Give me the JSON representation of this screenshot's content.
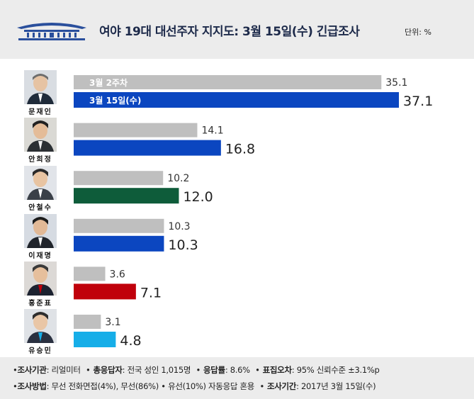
{
  "header": {
    "title": "여야 19대 대선주자 지지도: 3월 15일(수) 긴급조사",
    "unit": "단위: %"
  },
  "chart_data": {
    "type": "bar",
    "categories": [
      "문재인",
      "안희정",
      "안철수",
      "이재명",
      "홍준표",
      "유승민"
    ],
    "series": [
      {
        "name": "3월 2주차",
        "values": [
          35.1,
          14.1,
          10.2,
          10.3,
          3.6,
          3.1
        ]
      },
      {
        "name": "3월 15일(수)",
        "values": [
          37.1,
          16.8,
          12.0,
          10.3,
          7.1,
          4.8
        ]
      }
    ],
    "series_labels_shown_on_first_row": true,
    "value_labels": {
      "previous": [
        "35.1",
        "14.1",
        "10.2",
        "10.3",
        "3.6",
        "3.1"
      ],
      "current": [
        "37.1",
        "16.8",
        "12.0",
        "10.3",
        "7.1",
        "4.8"
      ]
    },
    "colors": {
      "previous": "#bfbfbf",
      "current": [
        "#0b46c0",
        "#0b46c0",
        "#0e5c3a",
        "#0b46c0",
        "#c0000b",
        "#16aee8"
      ]
    },
    "xlim": [
      0,
      37.1
    ]
  },
  "footer": {
    "line1": [
      {
        "key": "조사기관",
        "value": "리얼미터"
      },
      {
        "key": "총응답자",
        "value": "전국 성인 1,015명"
      },
      {
        "key": "응답률",
        "value": "8.6%"
      },
      {
        "key": "표집오차",
        "value": "95% 신뢰수준 ±3.1%p"
      }
    ],
    "line2": [
      {
        "key": "조사방법",
        "value": "무선 전화면접(4%), 무선(86%) • 유선(10%) 자동응답 혼용"
      },
      {
        "key": "조사기간",
        "value": "2017년 3월 15일(수)"
      }
    ]
  }
}
